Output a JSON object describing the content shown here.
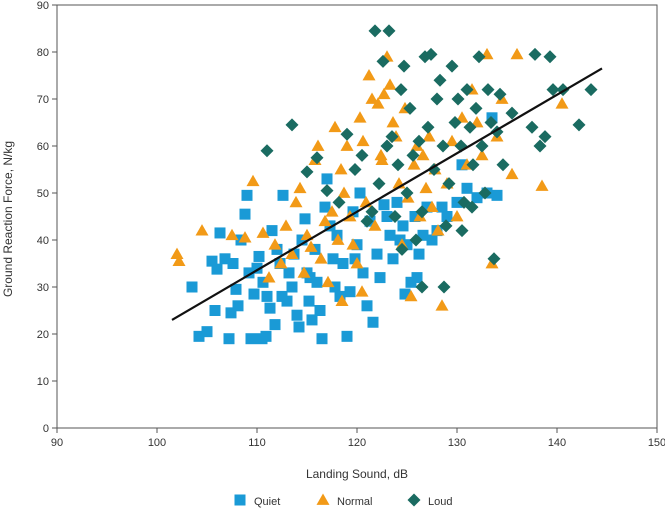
{
  "chart_data": {
    "type": "scatter",
    "xlabel": "Landing Sound, dB",
    "ylabel": "Ground Reaction Force, N/kg",
    "xlim": [
      90,
      150
    ],
    "ylim": [
      0,
      90
    ],
    "x_ticks": [
      "90",
      "100",
      "110",
      "120",
      "130",
      "140",
      "150"
    ],
    "y_ticks": [
      "0",
      "10",
      "20",
      "30",
      "40",
      "50",
      "60",
      "70",
      "80",
      "90"
    ],
    "grid": false,
    "legend_position": "bottom",
    "series": [
      {
        "name": "Quiet",
        "marker": "square",
        "color": "#1a9ad6",
        "points": [
          [
            103.5,
            30
          ],
          [
            104.2,
            19.5
          ],
          [
            105,
            20.5
          ],
          [
            105.5,
            35.5
          ],
          [
            105.8,
            25
          ],
          [
            106,
            33.8
          ],
          [
            106.3,
            41.5
          ],
          [
            106.8,
            36
          ],
          [
            107.2,
            19
          ],
          [
            107.4,
            24.5
          ],
          [
            107.6,
            35
          ],
          [
            107.9,
            29.5
          ],
          [
            108.1,
            26
          ],
          [
            108.4,
            40
          ],
          [
            108.8,
            45.5
          ],
          [
            109,
            49.5
          ],
          [
            109.2,
            33
          ],
          [
            109.4,
            19
          ],
          [
            109.7,
            28.5
          ],
          [
            110,
            34
          ],
          [
            110.2,
            36.5
          ],
          [
            110.6,
            31
          ],
          [
            110.9,
            19.5
          ],
          [
            111,
            28
          ],
          [
            111.3,
            25.5
          ],
          [
            111.5,
            42
          ],
          [
            111.8,
            22
          ],
          [
            112,
            38
          ],
          [
            112.3,
            35
          ],
          [
            112.6,
            49.5
          ],
          [
            113,
            27
          ],
          [
            113.2,
            33
          ],
          [
            113.5,
            30
          ],
          [
            113.7,
            37
          ],
          [
            114,
            24
          ],
          [
            114.2,
            21.5
          ],
          [
            114.5,
            40
          ],
          [
            114.8,
            44.5
          ],
          [
            115,
            33
          ],
          [
            115.2,
            27
          ],
          [
            115.5,
            23
          ],
          [
            115.8,
            38
          ],
          [
            116,
            31
          ],
          [
            116.3,
            25
          ],
          [
            116.5,
            19
          ],
          [
            116.8,
            47
          ],
          [
            117,
            53
          ],
          [
            117.3,
            43
          ],
          [
            117.6,
            36
          ],
          [
            118,
            41
          ],
          [
            118.3,
            28
          ],
          [
            118.6,
            35
          ],
          [
            119,
            19.5
          ],
          [
            119.3,
            29
          ],
          [
            119.6,
            46
          ],
          [
            120,
            39
          ],
          [
            120.3,
            50
          ],
          [
            120.6,
            33
          ],
          [
            121,
            26
          ],
          [
            121.3,
            44
          ],
          [
            121.6,
            22.5
          ],
          [
            122,
            37
          ],
          [
            122.3,
            32
          ],
          [
            122.7,
            47.5
          ],
          [
            123,
            45
          ],
          [
            123.3,
            41
          ],
          [
            123.6,
            36
          ],
          [
            124,
            48
          ],
          [
            124.3,
            40
          ],
          [
            124.6,
            43
          ],
          [
            125,
            39
          ],
          [
            125.4,
            31
          ],
          [
            125.8,
            45
          ],
          [
            126.2,
            37
          ],
          [
            126.6,
            41
          ],
          [
            127,
            47
          ],
          [
            127.5,
            40
          ],
          [
            128,
            42
          ],
          [
            128.5,
            47
          ],
          [
            129,
            45
          ],
          [
            130,
            48
          ],
          [
            131,
            51
          ],
          [
            132,
            49
          ],
          [
            133,
            50
          ],
          [
            134,
            49.5
          ],
          [
            110.5,
            19
          ],
          [
            112.5,
            28
          ],
          [
            115.3,
            32
          ],
          [
            117.8,
            30
          ],
          [
            119.8,
            36
          ],
          [
            124.8,
            28.5
          ],
          [
            126,
            32
          ],
          [
            130.5,
            56
          ],
          [
            133.5,
            66
          ]
        ]
      },
      {
        "name": "Normal",
        "marker": "triangle",
        "color": "#f29a17",
        "points": [
          [
            102,
            37
          ],
          [
            102.2,
            35.5
          ],
          [
            104.5,
            42
          ],
          [
            107.5,
            41
          ],
          [
            108.8,
            40.5
          ],
          [
            109.6,
            52.5
          ],
          [
            110.6,
            41.5
          ],
          [
            111.2,
            32
          ],
          [
            111.8,
            39
          ],
          [
            112.4,
            35
          ],
          [
            112.9,
            43
          ],
          [
            113.5,
            37
          ],
          [
            113.9,
            48
          ],
          [
            114.3,
            51
          ],
          [
            114.7,
            33
          ],
          [
            115,
            41
          ],
          [
            115.4,
            38.5
          ],
          [
            115.8,
            57
          ],
          [
            116.1,
            60
          ],
          [
            116.4,
            36
          ],
          [
            116.8,
            44
          ],
          [
            117.1,
            31
          ],
          [
            117.5,
            46
          ],
          [
            117.8,
            64
          ],
          [
            118.1,
            40
          ],
          [
            118.4,
            55
          ],
          [
            118.7,
            50
          ],
          [
            119,
            60
          ],
          [
            119.3,
            45
          ],
          [
            119.6,
            39
          ],
          [
            120,
            35
          ],
          [
            120.3,
            66
          ],
          [
            120.6,
            61
          ],
          [
            120.9,
            48
          ],
          [
            121.2,
            75
          ],
          [
            121.5,
            70
          ],
          [
            121.8,
            43
          ],
          [
            122.1,
            69
          ],
          [
            122.4,
            58
          ],
          [
            122.7,
            71
          ],
          [
            123,
            79
          ],
          [
            123.3,
            73
          ],
          [
            123.6,
            65
          ],
          [
            123.9,
            62
          ],
          [
            124.2,
            52
          ],
          [
            124.5,
            39
          ],
          [
            124.8,
            68
          ],
          [
            125.1,
            49
          ],
          [
            125.4,
            28
          ],
          [
            125.7,
            56
          ],
          [
            126,
            60
          ],
          [
            126.3,
            45
          ],
          [
            126.6,
            58
          ],
          [
            126.9,
            51
          ],
          [
            127.2,
            62
          ],
          [
            127.5,
            47
          ],
          [
            127.8,
            55
          ],
          [
            128.1,
            42
          ],
          [
            128.5,
            26
          ],
          [
            129,
            52
          ],
          [
            129.5,
            61
          ],
          [
            130,
            45
          ],
          [
            130.5,
            66
          ],
          [
            131,
            56
          ],
          [
            131.5,
            72
          ],
          [
            132,
            65
          ],
          [
            132.5,
            58
          ],
          [
            133,
            79.5
          ],
          [
            133.5,
            35
          ],
          [
            134,
            62
          ],
          [
            134.5,
            70
          ],
          [
            135.5,
            54
          ],
          [
            136,
            79.5
          ],
          [
            138.5,
            51.5
          ],
          [
            140.5,
            69
          ],
          [
            120.5,
            29
          ],
          [
            122.5,
            57
          ],
          [
            118.5,
            27
          ]
        ]
      },
      {
        "name": "Loud",
        "marker": "diamond",
        "color": "#1a6b61",
        "points": [
          [
            111,
            59
          ],
          [
            113.5,
            64.5
          ],
          [
            115,
            54.5
          ],
          [
            116,
            57.5
          ],
          [
            117,
            50.5
          ],
          [
            118.2,
            48
          ],
          [
            119,
            62.5
          ],
          [
            119.8,
            55
          ],
          [
            120.5,
            58
          ],
          [
            121,
            44
          ],
          [
            121.5,
            46
          ],
          [
            121.8,
            84.5
          ],
          [
            122.2,
            52
          ],
          [
            122.6,
            78
          ],
          [
            123,
            60
          ],
          [
            123.2,
            84.5
          ],
          [
            123.5,
            62
          ],
          [
            123.8,
            45
          ],
          [
            124.1,
            56
          ],
          [
            124.4,
            72
          ],
          [
            124.7,
            77
          ],
          [
            125,
            50
          ],
          [
            125.3,
            68
          ],
          [
            125.6,
            58
          ],
          [
            125.9,
            40
          ],
          [
            126.2,
            61
          ],
          [
            126.5,
            46
          ],
          [
            126.8,
            79
          ],
          [
            127.1,
            64
          ],
          [
            127.4,
            79.5
          ],
          [
            127.7,
            55
          ],
          [
            128,
            70
          ],
          [
            128.3,
            74
          ],
          [
            128.6,
            60
          ],
          [
            128.9,
            43
          ],
          [
            129.2,
            52
          ],
          [
            129.5,
            77
          ],
          [
            129.8,
            65
          ],
          [
            130.1,
            70
          ],
          [
            130.4,
            60
          ],
          [
            130.7,
            48
          ],
          [
            131,
            72
          ],
          [
            131.3,
            64
          ],
          [
            131.6,
            56
          ],
          [
            131.9,
            68
          ],
          [
            132.2,
            79
          ],
          [
            132.5,
            60
          ],
          [
            132.8,
            50
          ],
          [
            133.1,
            72
          ],
          [
            133.4,
            65
          ],
          [
            133.7,
            36
          ],
          [
            134,
            63
          ],
          [
            134.3,
            71
          ],
          [
            134.6,
            56
          ],
          [
            135.5,
            67
          ],
          [
            137.5,
            64
          ],
          [
            137.8,
            79.5
          ],
          [
            138.3,
            60
          ],
          [
            138.8,
            62
          ],
          [
            139.3,
            79
          ],
          [
            139.6,
            72
          ],
          [
            140.6,
            72
          ],
          [
            142.2,
            64.5
          ],
          [
            143.4,
            72
          ],
          [
            124.5,
            38
          ],
          [
            126.5,
            30
          ],
          [
            128.7,
            30
          ],
          [
            130.5,
            42
          ],
          [
            131.5,
            47
          ]
        ]
      }
    ],
    "trendline": {
      "x": [
        101.5,
        144.5
      ],
      "y": [
        23,
        76.5
      ]
    }
  }
}
